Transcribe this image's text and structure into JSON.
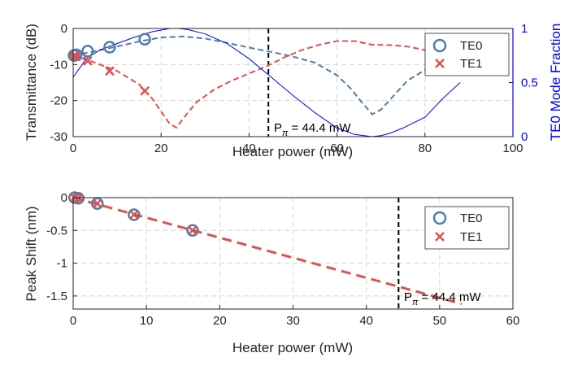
{
  "colors": {
    "te0": "#4f7ea8",
    "te1": "#e05050",
    "right_axis": "#0000ff",
    "grid": "#d6d6d6",
    "axes": "#262626",
    "ppi_line": "#000000"
  },
  "chart_data": [
    {
      "type": "line",
      "xlabel": "Heater power (mW)",
      "ylabel": "Transmittance (dB)",
      "y2label": "TE0 Mode Fraction",
      "xlim": [
        0,
        100
      ],
      "ylim": [
        -30,
        0
      ],
      "y2lim": [
        0,
        1
      ],
      "x_ticks": [
        "0",
        "20",
        "40",
        "60",
        "80",
        "100"
      ],
      "y_ticks": [
        "0",
        "-10",
        "-20",
        "-30"
      ],
      "y2_ticks": [
        "1",
        "0.5",
        "0"
      ],
      "grid": true,
      "legend_position": "top-right",
      "legend": [
        "TE0",
        "TE1"
      ],
      "annotation": {
        "text_p": "P",
        "text_sub": "π",
        "text_val": " = 44.4 mW",
        "x": 44.4
      },
      "series": [
        {
          "name": "TE0",
          "kind": "markers-circle",
          "x": [
            0.2,
            0.7,
            3.3,
            8.3,
            16.3
          ],
          "y": [
            -7.5,
            -7.3,
            -6.3,
            -5.2,
            -3.0
          ]
        },
        {
          "name": "TE1",
          "kind": "markers-x",
          "x": [
            0.2,
            0.7,
            3.3,
            8.3,
            16.3
          ],
          "y": [
            -7.5,
            -7.8,
            -9.0,
            -11.8,
            -17.3
          ]
        },
        {
          "kind": "dashed-te0",
          "x": [
            0,
            5,
            10,
            15,
            20,
            25,
            30,
            35,
            40,
            45,
            50,
            55,
            60,
            63,
            66,
            68,
            70,
            73,
            76,
            80
          ],
          "y": [
            -7.5,
            -6.3,
            -5.0,
            -3.6,
            -2.5,
            -2.2,
            -2.8,
            -4.0,
            -5.3,
            -6.5,
            -7.8,
            -9.5,
            -13.0,
            -16.5,
            -21.0,
            -23.8,
            -22.5,
            -18.5,
            -14.5,
            -11.5
          ]
        },
        {
          "kind": "dashed-te1",
          "x": [
            0,
            5,
            10,
            15,
            18,
            20,
            22,
            23.5,
            25,
            28,
            32,
            36,
            40,
            44,
            48,
            52,
            56,
            60,
            64,
            68,
            72,
            76,
            80
          ],
          "y": [
            -7.5,
            -9.5,
            -11.8,
            -15.5,
            -19.5,
            -23.0,
            -26.5,
            -27.5,
            -25.0,
            -20.5,
            -17.0,
            -14.5,
            -12.5,
            -10.5,
            -8.0,
            -6.0,
            -4.5,
            -3.5,
            -3.5,
            -4.5,
            -4.6,
            -5.0,
            -6.0
          ]
        },
        {
          "kind": "mode-fraction",
          "axis": "y2",
          "x": [
            0,
            3,
            6,
            10,
            14,
            18,
            22,
            24,
            26,
            30,
            35,
            40,
            45,
            50,
            55,
            60,
            64,
            68,
            70,
            72,
            75,
            80,
            84,
            88
          ],
          "y": [
            0.55,
            0.72,
            0.8,
            0.86,
            0.92,
            0.97,
            1.0,
            1.0,
            0.99,
            0.95,
            0.86,
            0.72,
            0.55,
            0.38,
            0.22,
            0.08,
            0.02,
            0.0,
            0.01,
            0.03,
            0.08,
            0.18,
            0.35,
            0.5
          ]
        }
      ]
    },
    {
      "type": "line",
      "xlabel": "Heater power (mW)",
      "ylabel": "Peak Shift (nm)",
      "xlim": [
        0,
        60
      ],
      "ylim": [
        -1.7,
        0
      ],
      "x_ticks": [
        "0",
        "10",
        "20",
        "30",
        "40",
        "50",
        "60"
      ],
      "y_ticks": [
        "0",
        "-0.5",
        "-1",
        "-1.5"
      ],
      "grid": true,
      "legend_position": "top-right",
      "legend": [
        "TE0",
        "TE1"
      ],
      "annotation": {
        "text_p": "P",
        "text_sub": "π",
        "text_val": " = 44.4 mW",
        "x": 44.4
      },
      "series": [
        {
          "name": "TE0",
          "kind": "markers-circle",
          "x": [
            0.2,
            0.7,
            3.3,
            8.3,
            16.3
          ],
          "y": [
            0.0,
            -0.01,
            -0.09,
            -0.26,
            -0.5
          ]
        },
        {
          "name": "TE1",
          "kind": "markers-x",
          "x": [
            0.2,
            0.7,
            3.3,
            8.3,
            16.3
          ],
          "y": [
            0.0,
            -0.01,
            -0.09,
            -0.26,
            -0.5
          ]
        },
        {
          "kind": "fit",
          "x": [
            0,
            53
          ],
          "y": [
            0.0,
            -1.62
          ]
        }
      ]
    }
  ]
}
